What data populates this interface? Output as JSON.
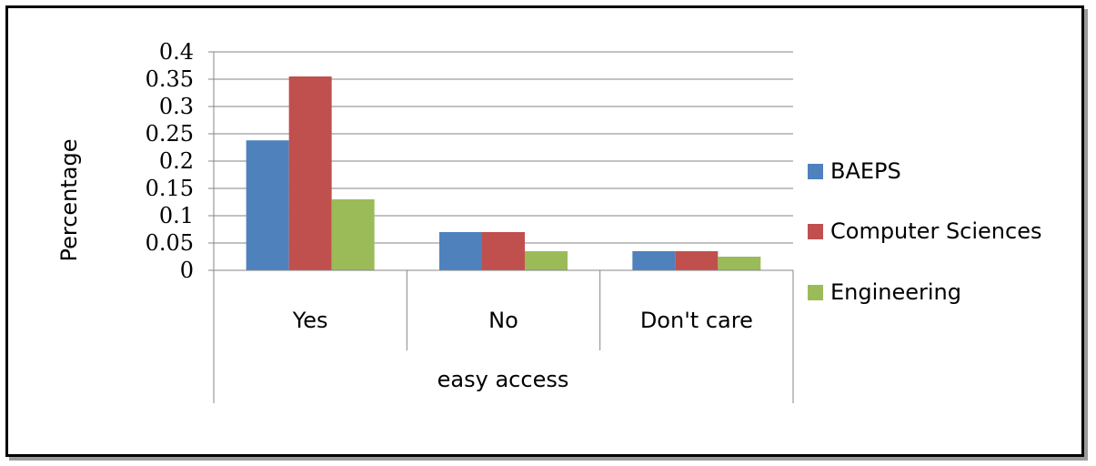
{
  "chart_data": {
    "type": "bar",
    "categories": [
      "Yes",
      "No",
      "Don't care"
    ],
    "group_label": "easy access",
    "ylabel": "Percentage",
    "xlabel": "",
    "ylim": [
      0,
      0.4
    ],
    "yticks": [
      "0",
      "0.05",
      "0.1",
      "0.15",
      "0.2",
      "0.25",
      "0.3",
      "0.35",
      "0.4"
    ],
    "ytick_values": [
      0,
      0.05,
      0.1,
      0.15,
      0.2,
      0.25,
      0.3,
      0.35,
      0.4
    ],
    "grid": true,
    "legend_position": "right",
    "series": [
      {
        "name": "BAEPS",
        "color": "#4F81BD",
        "values": [
          0.238,
          0.07,
          0.035
        ]
      },
      {
        "name": "Computer Sciences",
        "color": "#C0504D",
        "values": [
          0.355,
          0.07,
          0.035
        ]
      },
      {
        "name": "Engineering",
        "color": "#9BBB59",
        "values": [
          0.13,
          0.035,
          0.025
        ]
      }
    ]
  }
}
